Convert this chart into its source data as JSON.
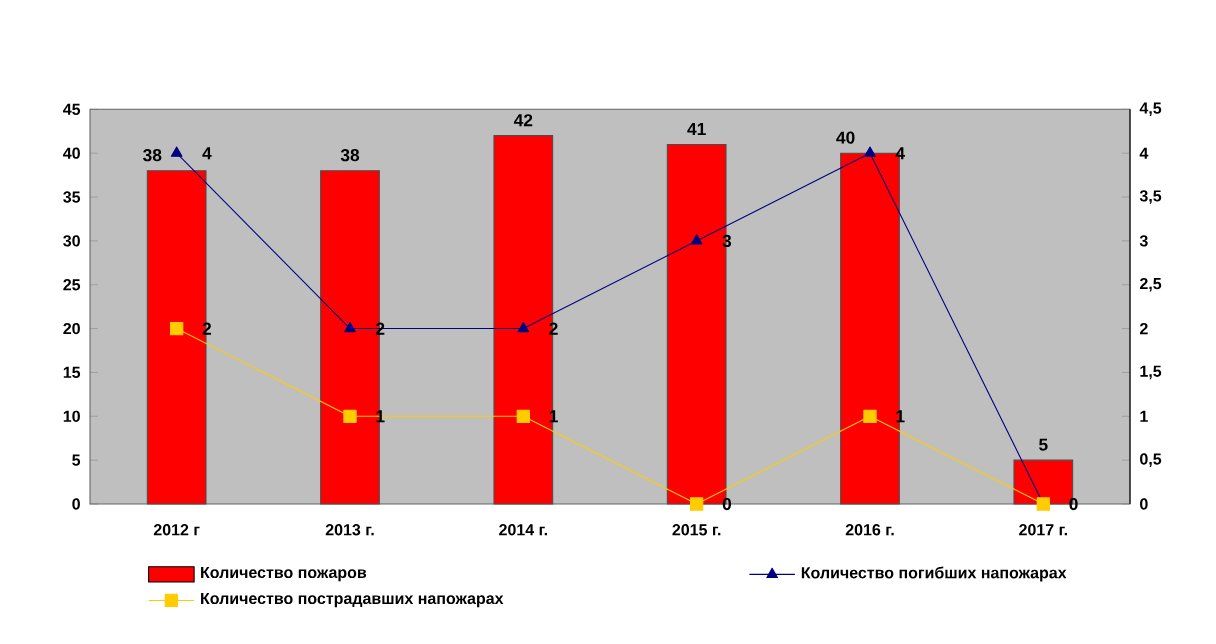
{
  "chart_data": {
    "type": "bar",
    "categories": [
      "2012 г",
      "2013 г.",
      "2014 г.",
      "2015 г.",
      "2016 г.",
      "2017 г."
    ],
    "series": [
      {
        "name": "Количество пожаров",
        "color": "#ff0000",
        "values": [
          38,
          38,
          42,
          41,
          40,
          5
        ]
      },
      {
        "name": "Количество погибших напожарах",
        "type": "line",
        "axis": "y2",
        "color": "#000080",
        "marker": "triangle",
        "values": [
          4,
          2,
          2,
          3,
          4,
          0
        ],
        "value_labels": [
          "4",
          "2",
          "2",
          "3",
          "4",
          null
        ]
      },
      {
        "name": "Количество пострадавших напожарах",
        "type": "line",
        "axis": "y2",
        "color": "#ffcc00",
        "marker": "square",
        "values": [
          2,
          1,
          1,
          0,
          1,
          0
        ]
      }
    ],
    "ylim": [
      0,
      45
    ],
    "yticks": [
      0,
      5,
      10,
      15,
      20,
      25,
      30,
      35,
      40,
      45
    ],
    "y2lim": [
      0,
      4.5
    ],
    "y2ticks": [
      0,
      {
        "value": 0.5,
        "label": "0,5"
      },
      1,
      {
        "value": 1.5,
        "label": "1,5"
      },
      2,
      {
        "value": 2.5,
        "label": "2,5"
      },
      3,
      {
        "value": 3.5,
        "label": "3,5"
      },
      4,
      {
        "value": 4.5,
        "label": "4,5"
      }
    ],
    "data_labels": true,
    "grid": false,
    "legend": "bottom"
  }
}
